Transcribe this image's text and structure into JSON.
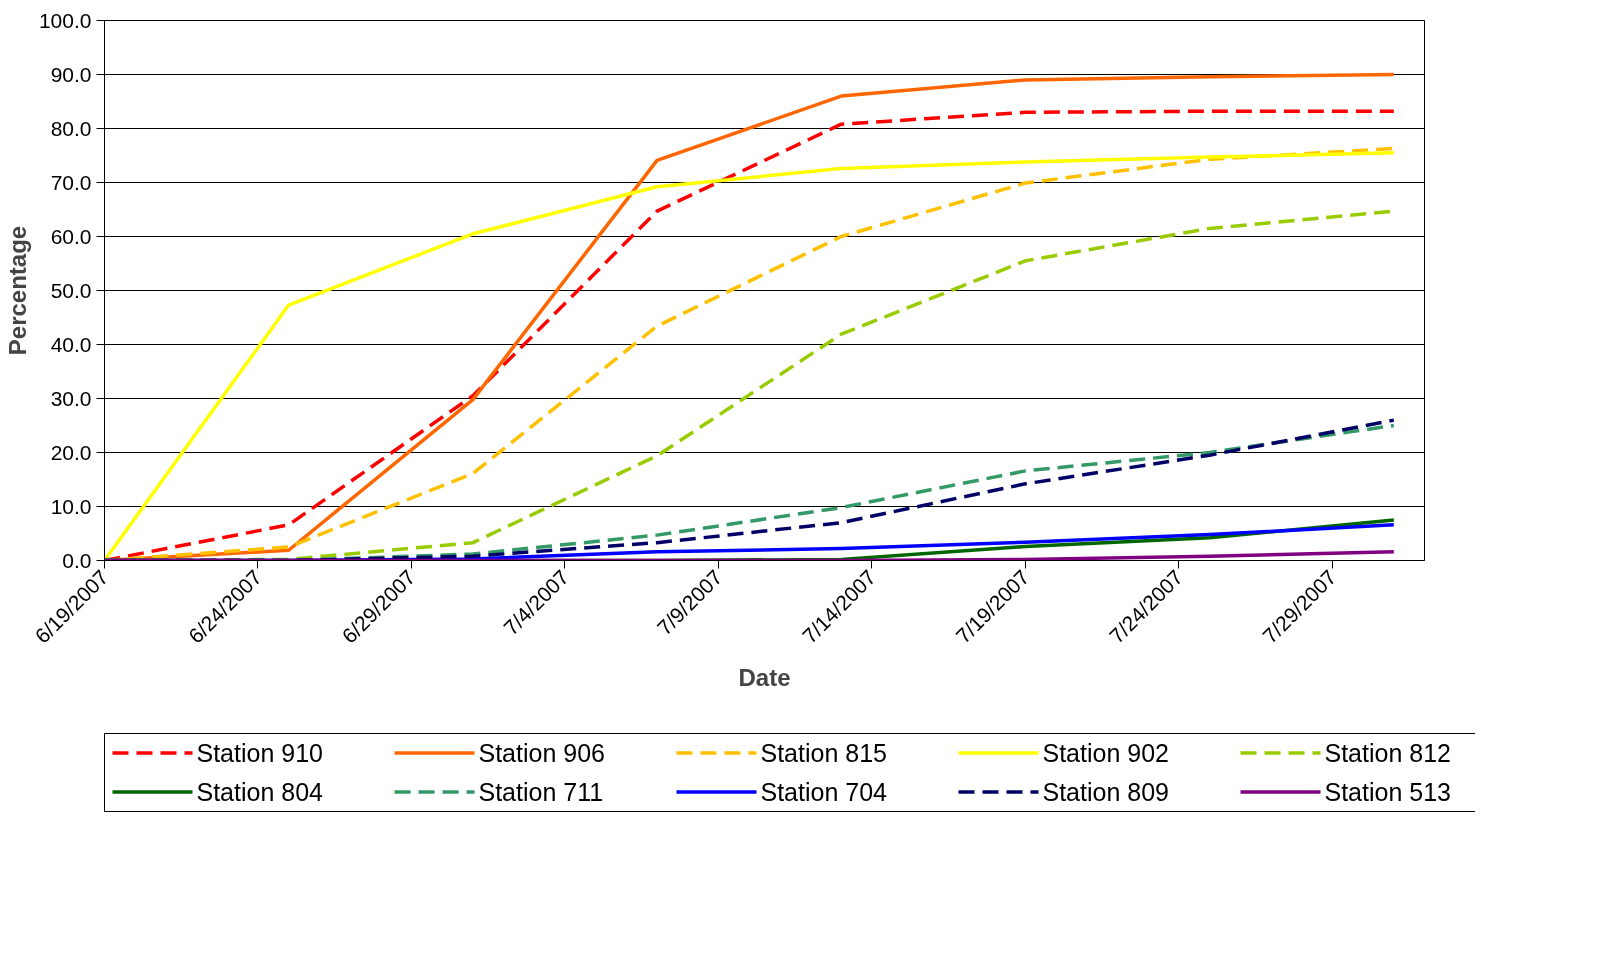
{
  "chart_data": {
    "type": "line",
    "xlabel": "Date",
    "ylabel": "Percentage",
    "x": [
      "2007-06-19",
      "2007-06-25",
      "2007-07-01",
      "2007-07-07",
      "2007-07-13",
      "2007-07-19",
      "2007-07-25",
      "2007-07-31"
    ],
    "xlim": [
      "2007-06-19",
      "2007-08-01"
    ],
    "xticks": [
      {
        "value": "2007-06-19",
        "label": "6/19/2007"
      },
      {
        "value": "2007-06-24",
        "label": "6/24/2007"
      },
      {
        "value": "2007-06-29",
        "label": "6/29/2007"
      },
      {
        "value": "2007-07-04",
        "label": "7/4/2007"
      },
      {
        "value": "2007-07-09",
        "label": "7/9/2007"
      },
      {
        "value": "2007-07-14",
        "label": "7/14/2007"
      },
      {
        "value": "2007-07-19",
        "label": "7/19/2007"
      },
      {
        "value": "2007-07-24",
        "label": "7/24/2007"
      },
      {
        "value": "2007-07-29",
        "label": "7/29/2007"
      }
    ],
    "ylim": [
      0,
      100
    ],
    "yticks": [
      {
        "value": 0,
        "label": "0.0"
      },
      {
        "value": 10,
        "label": "10.0"
      },
      {
        "value": 20,
        "label": "20.0"
      },
      {
        "value": 30,
        "label": "30.0"
      },
      {
        "value": 40,
        "label": "40.0"
      },
      {
        "value": 50,
        "label": "50.0"
      },
      {
        "value": 60,
        "label": "60.0"
      },
      {
        "value": 70,
        "label": "70.0"
      },
      {
        "value": 80,
        "label": "80.0"
      },
      {
        "value": 90,
        "label": "90.0"
      },
      {
        "value": 100,
        "label": "100.0"
      }
    ],
    "grid": "y",
    "legend": "bottom",
    "marker": "none",
    "series": [
      {
        "name": "Station 910",
        "color": "#ff0000",
        "line_style": "dashed",
        "values": [
          0,
          6.6,
          30.5,
          64.7,
          80.8,
          83,
          83.2,
          83.2
        ]
      },
      {
        "name": "Station 906",
        "color": "#ff6600",
        "line_style": "solid",
        "values": [
          0,
          1.9,
          29.8,
          74.1,
          86,
          89,
          89.6,
          90
        ]
      },
      {
        "name": "Station 815",
        "color": "#ffc000",
        "line_style": "dashed",
        "values": [
          0,
          2.5,
          16.1,
          43.4,
          60,
          69.9,
          74.3,
          76.3
        ]
      },
      {
        "name": "Station 902",
        "color": "#ffff00",
        "line_style": "solid",
        "values": [
          0,
          47.3,
          60.5,
          69.2,
          72.6,
          73.8,
          74.7,
          75.5
        ]
      },
      {
        "name": "Station 812",
        "color": "#99cc00",
        "line_style": "dashed",
        "values": [
          0,
          0.2,
          3.3,
          19.4,
          41.9,
          55.5,
          61.5,
          64.7
        ]
      },
      {
        "name": "Station 804",
        "color": "#006600",
        "line_style": "solid",
        "values": [
          0,
          0,
          0,
          0,
          0.2,
          2.6,
          4.2,
          7.5
        ]
      },
      {
        "name": "Station 711",
        "color": "#339966",
        "line_style": "dashed",
        "values": [
          0,
          0,
          1.2,
          4.7,
          9.8,
          16.6,
          20,
          25
        ]
      },
      {
        "name": "Station 704",
        "color": "#0000ff",
        "line_style": "solid",
        "values": [
          0,
          0,
          0.3,
          1.6,
          2.2,
          3.4,
          4.8,
          6.6
        ]
      },
      {
        "name": "Station 809",
        "color": "#000066",
        "line_style": "dashed",
        "values": [
          0,
          0,
          0.8,
          3.3,
          7,
          14.2,
          19.5,
          26
        ]
      },
      {
        "name": "Station 513",
        "color": "#800080",
        "line_style": "solid",
        "values": [
          0,
          0,
          0,
          0,
          0,
          0.2,
          0.8,
          1.6
        ]
      }
    ]
  }
}
